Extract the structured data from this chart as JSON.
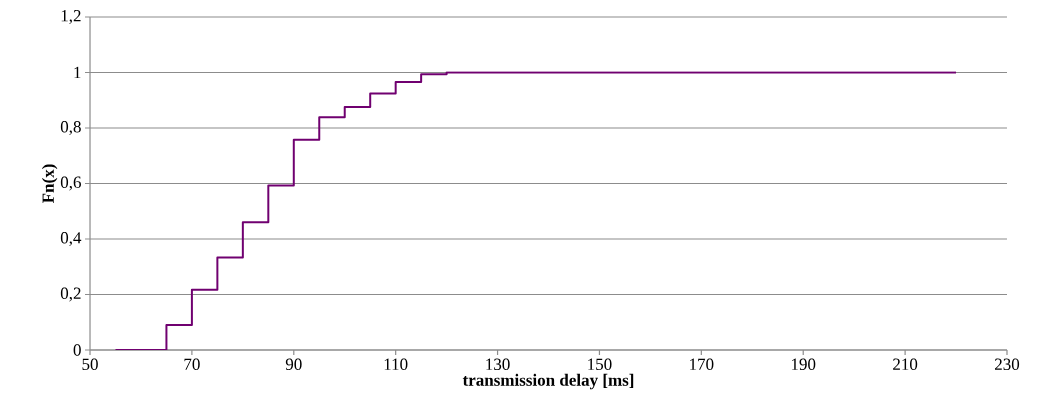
{
  "chart_data": {
    "type": "step",
    "xlabel": "transmission delay [ms]",
    "ylabel": "Fn(x)",
    "x": [
      55,
      65,
      70,
      75,
      80,
      85,
      90,
      95,
      100,
      105,
      110,
      115,
      120,
      220
    ],
    "values": [
      0,
      0.09,
      0.217,
      0.333,
      0.46,
      0.593,
      0.758,
      0.839,
      0.876,
      0.924,
      0.966,
      0.994,
      1,
      1
    ],
    "color": "#700070",
    "xlim": [
      50,
      230
    ],
    "xticks": [
      50,
      70,
      90,
      110,
      130,
      150,
      170,
      190,
      210,
      230
    ],
    "ylim": [
      0,
      1.2
    ],
    "yticks": [
      0,
      {
        "value": 0.2,
        "label": "0,2"
      },
      {
        "value": 0.4,
        "label": "0,4"
      },
      {
        "value": 0.6,
        "label": "0,6"
      },
      {
        "value": 0.8,
        "label": "0,8"
      },
      1,
      {
        "value": 1.2,
        "label": "1,2"
      }
    ],
    "grid": "y"
  }
}
